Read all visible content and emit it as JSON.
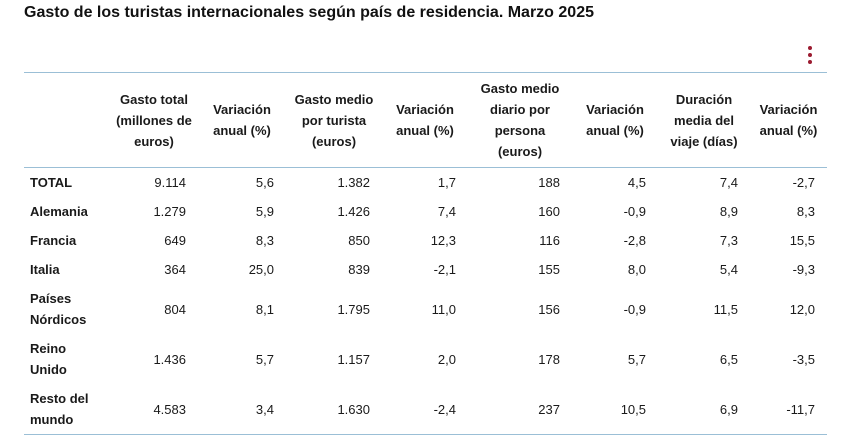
{
  "title": "Gasto de los turistas internacionales según país de residencia. Marzo 2025",
  "accent_color": "#9b1b30",
  "rule_color": "#9bbfd6",
  "menu_icon": "vertical-ellipsis-icon",
  "columns": [
    "",
    "Gasto total (millones de euros)",
    "Variación anual (%)",
    "Gasto medio por turista (euros)",
    "Variación anual (%)",
    "Gasto medio diario por persona (euros)",
    "Variación anual (%)",
    "Duración media del viaje (días)",
    "Variación anual (%)"
  ],
  "rows": [
    {
      "country": "TOTAL",
      "values": [
        "9.114",
        "5,6",
        "1.382",
        "1,7",
        "188",
        "4,5",
        "7,4",
        "-2,7"
      ]
    },
    {
      "country": "Alemania",
      "values": [
        "1.279",
        "5,9",
        "1.426",
        "7,4",
        "160",
        "-0,9",
        "8,9",
        "8,3"
      ]
    },
    {
      "country": "Francia",
      "values": [
        "649",
        "8,3",
        "850",
        "12,3",
        "116",
        "-2,8",
        "7,3",
        "15,5"
      ]
    },
    {
      "country": "Italia",
      "values": [
        "364",
        "25,0",
        "839",
        "-2,1",
        "155",
        "8,0",
        "5,4",
        "-9,3"
      ]
    },
    {
      "country": "Países Nórdicos",
      "values": [
        "804",
        "8,1",
        "1.795",
        "11,0",
        "156",
        "-0,9",
        "11,5",
        "12,0"
      ]
    },
    {
      "country": "Reino Unido",
      "values": [
        "1.436",
        "5,7",
        "1.157",
        "2,0",
        "178",
        "5,7",
        "6,5",
        "-3,5"
      ]
    },
    {
      "country": "Resto del mundo",
      "values": [
        "4.583",
        "3,4",
        "1.630",
        "-2,4",
        "237",
        "10,5",
        "6,9",
        "-11,7"
      ]
    }
  ]
}
